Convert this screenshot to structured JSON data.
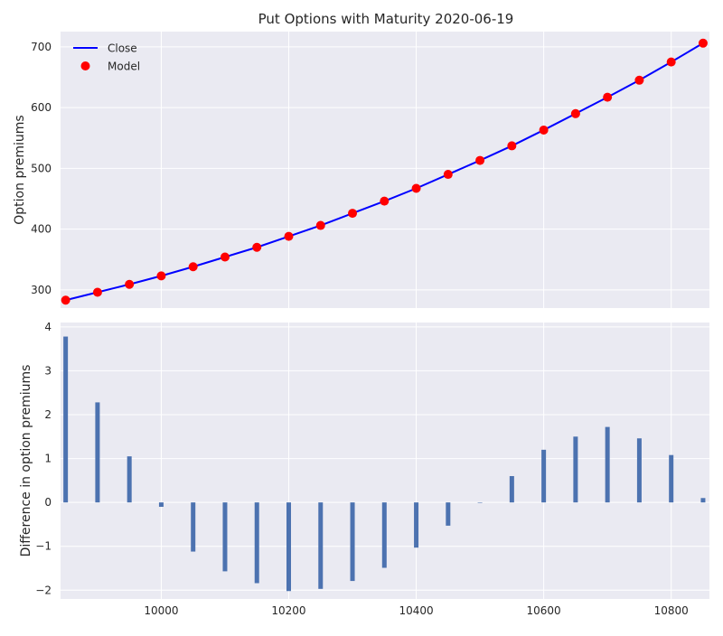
{
  "chart_data": [
    {
      "type": "line",
      "title": "Put Options with Maturity 2020-06-19",
      "xlabel": "",
      "ylabel": "Option premiums",
      "xlim": [
        9842,
        10860
      ],
      "ylim": [
        270,
        725
      ],
      "xticks": [
        10000,
        10200,
        10400,
        10600,
        10800
      ],
      "yticks": [
        300,
        400,
        500,
        600,
        700
      ],
      "ytick_labels": [
        "300",
        "400",
        "500",
        "600",
        "700"
      ],
      "x": [
        9850,
        9900,
        9950,
        10000,
        10050,
        10100,
        10150,
        10200,
        10250,
        10300,
        10350,
        10400,
        10450,
        10500,
        10550,
        10600,
        10650,
        10700,
        10750,
        10800,
        10850
      ],
      "series": [
        {
          "name": "Close",
          "kind": "line",
          "color": "#0000ff",
          "values": [
            283,
            296,
            309,
            323,
            338,
            354,
            370,
            388,
            406,
            426,
            446,
            467,
            490,
            513,
            537,
            563,
            590,
            617,
            645,
            675,
            706
          ]
        },
        {
          "name": "Model",
          "kind": "markers",
          "color": "#ff0000",
          "values": [
            283,
            296,
            309,
            323,
            338,
            354,
            370,
            388,
            406,
            426,
            446,
            467,
            490,
            513,
            537,
            563,
            590,
            617,
            645,
            675,
            706
          ]
        }
      ],
      "legend": "top-left",
      "grid": true
    },
    {
      "type": "bar",
      "title": "",
      "xlabel": "",
      "ylabel": "Difference in option premiums",
      "xlim": [
        9842,
        10860
      ],
      "ylim": [
        -2.2,
        4.1
      ],
      "xticks": [
        10000,
        10200,
        10400,
        10600,
        10800
      ],
      "xtick_labels": [
        "10000",
        "10200",
        "10400",
        "10600",
        "10800"
      ],
      "yticks": [
        -2,
        -1,
        0,
        1,
        2,
        3,
        4
      ],
      "ytick_labels": [
        "−2",
        "−1",
        "0",
        "1",
        "2",
        "3",
        "4"
      ],
      "x": [
        9850,
        9900,
        9950,
        10000,
        10050,
        10100,
        10150,
        10200,
        10250,
        10300,
        10350,
        10400,
        10450,
        10500,
        10550,
        10600,
        10650,
        10700,
        10750,
        10800,
        10850
      ],
      "values": [
        3.78,
        2.28,
        1.05,
        -0.1,
        -1.12,
        -1.57,
        -1.84,
        -2.02,
        -1.97,
        -1.79,
        -1.49,
        -1.03,
        -0.53,
        0.0,
        0.6,
        1.2,
        1.5,
        1.72,
        1.46,
        1.08,
        0.1
      ],
      "bar_width": 5,
      "color": "#4c72b0",
      "grid": true
    }
  ]
}
